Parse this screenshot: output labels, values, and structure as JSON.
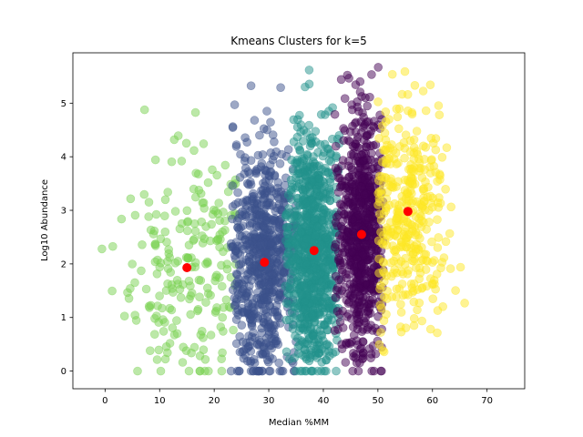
{
  "chart_data": {
    "type": "scatter",
    "title": "Kmeans Clusters for k=5",
    "xlabel": "Median %MM",
    "ylabel": "Log10 Abundance",
    "xlim": [
      -5.9,
      76.9
    ],
    "ylim": [
      -0.33,
      5.94
    ],
    "xticks": [
      0,
      10,
      20,
      30,
      40,
      50,
      60,
      70
    ],
    "yticks": [
      0,
      1,
      2,
      3,
      4,
      5
    ],
    "grid": false,
    "legend": "none",
    "marker_alpha": 0.5,
    "clusters": [
      {
        "color": "#7ad151",
        "x_range": [
          -2,
          24
        ],
        "x_center": 15,
        "x_spread": 6,
        "y_center": 1.9,
        "y_spread": 1.0,
        "point_count": 220
      },
      {
        "color": "#3b528b",
        "x_range": [
          23,
          35
        ],
        "x_center": 29,
        "x_spread": 3.0,
        "y_center": 2.05,
        "y_spread": 1.1,
        "point_count": 700
      },
      {
        "color": "#21918c",
        "x_range": [
          33,
          43
        ],
        "x_center": 38,
        "x_spread": 2.4,
        "y_center": 2.25,
        "y_spread": 1.1,
        "point_count": 900
      },
      {
        "color": "#440154",
        "x_range": [
          42,
          51
        ],
        "x_center": 47,
        "x_spread": 2.2,
        "y_center": 2.55,
        "y_spread": 1.1,
        "point_count": 750
      },
      {
        "color": "#fde725",
        "x_range": [
          50,
          74
        ],
        "x_center": 55.5,
        "x_spread": 3.8,
        "y_center": 2.95,
        "y_spread": 1.0,
        "point_count": 380
      }
    ],
    "centroids": [
      {
        "x": 15.0,
        "y": 1.93
      },
      {
        "x": 29.2,
        "y": 2.03
      },
      {
        "x": 38.3,
        "y": 2.25
      },
      {
        "x": 47.0,
        "y": 2.55
      },
      {
        "x": 55.5,
        "y": 2.98
      }
    ],
    "centroid_color": "#ff0000"
  }
}
